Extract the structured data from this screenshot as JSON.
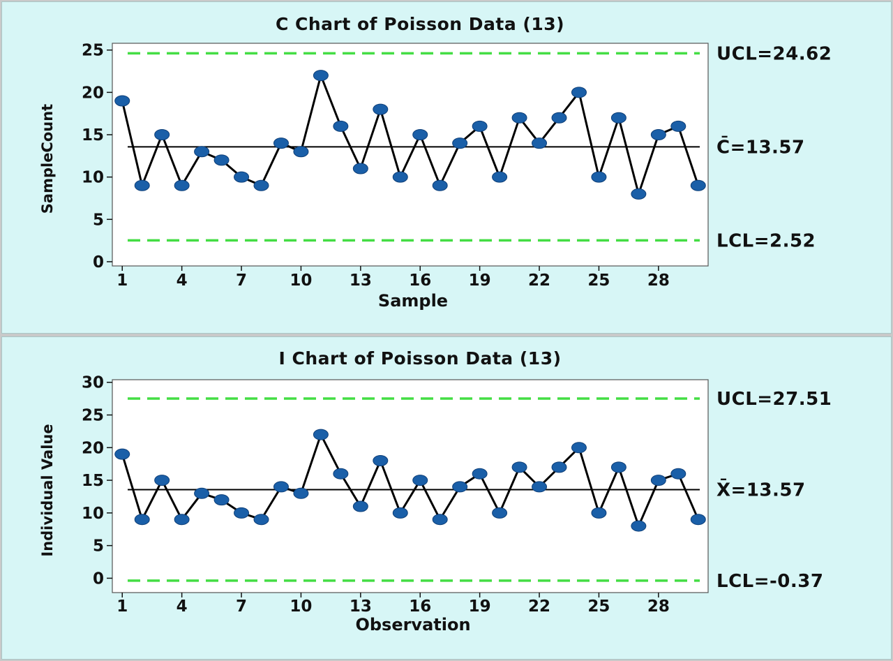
{
  "chart_data": [
    {
      "type": "line",
      "title": "C Chart of Poisson Data (13)",
      "xlabel": "Sample",
      "ylabel": "SampleCount",
      "x": [
        1,
        2,
        3,
        4,
        5,
        6,
        7,
        8,
        9,
        10,
        11,
        12,
        13,
        14,
        15,
        16,
        17,
        18,
        19,
        20,
        21,
        22,
        23,
        24,
        25,
        26,
        27,
        28,
        29,
        30
      ],
      "values": [
        19,
        9,
        15,
        9,
        13,
        12,
        10,
        9,
        14,
        13,
        22,
        16,
        11,
        18,
        10,
        15,
        9,
        14,
        16,
        10,
        17,
        14,
        17,
        20,
        10,
        17,
        8,
        15,
        16,
        9
      ],
      "xticks": [
        "1",
        "4",
        "7",
        "10",
        "13",
        "16",
        "19",
        "22",
        "25",
        "28"
      ],
      "yticks": [
        "0",
        "5",
        "10",
        "15",
        "20",
        "25"
      ],
      "xlim": [
        0.5,
        30.5
      ],
      "ylim": [
        -0.5,
        25.8
      ],
      "center": 13.57,
      "ucl": 24.62,
      "lcl": 2.52,
      "ucl_label": "UCL=24.62",
      "center_label": "C̄=13.57",
      "lcl_label": "LCL=2.52",
      "colors": {
        "points": "#1a5fa8",
        "line": "#000000",
        "limits": "#44dd44",
        "center": "#000000"
      }
    },
    {
      "type": "line",
      "title": "I Chart of Poisson Data (13)",
      "xlabel": "Observation",
      "ylabel": "Individual Value",
      "x": [
        1,
        2,
        3,
        4,
        5,
        6,
        7,
        8,
        9,
        10,
        11,
        12,
        13,
        14,
        15,
        16,
        17,
        18,
        19,
        20,
        21,
        22,
        23,
        24,
        25,
        26,
        27,
        28,
        29,
        30
      ],
      "values": [
        19,
        9,
        15,
        9,
        13,
        12,
        10,
        9,
        14,
        13,
        22,
        16,
        11,
        18,
        10,
        15,
        9,
        14,
        16,
        10,
        17,
        14,
        17,
        20,
        10,
        17,
        8,
        15,
        16,
        9
      ],
      "xticks": [
        "1",
        "4",
        "7",
        "10",
        "13",
        "16",
        "19",
        "22",
        "25",
        "28"
      ],
      "yticks": [
        "0",
        "5",
        "10",
        "15",
        "20",
        "25",
        "30"
      ],
      "xlim": [
        0.5,
        30.5
      ],
      "ylim": [
        -2.2,
        30.4
      ],
      "center": 13.57,
      "ucl": 27.51,
      "lcl": -0.37,
      "ucl_label": "UCL=27.51",
      "center_label": "X̄=13.57",
      "lcl_label": "LCL=-0.37",
      "colors": {
        "points": "#1a5fa8",
        "line": "#000000",
        "limits": "#44dd44",
        "center": "#000000"
      }
    }
  ]
}
